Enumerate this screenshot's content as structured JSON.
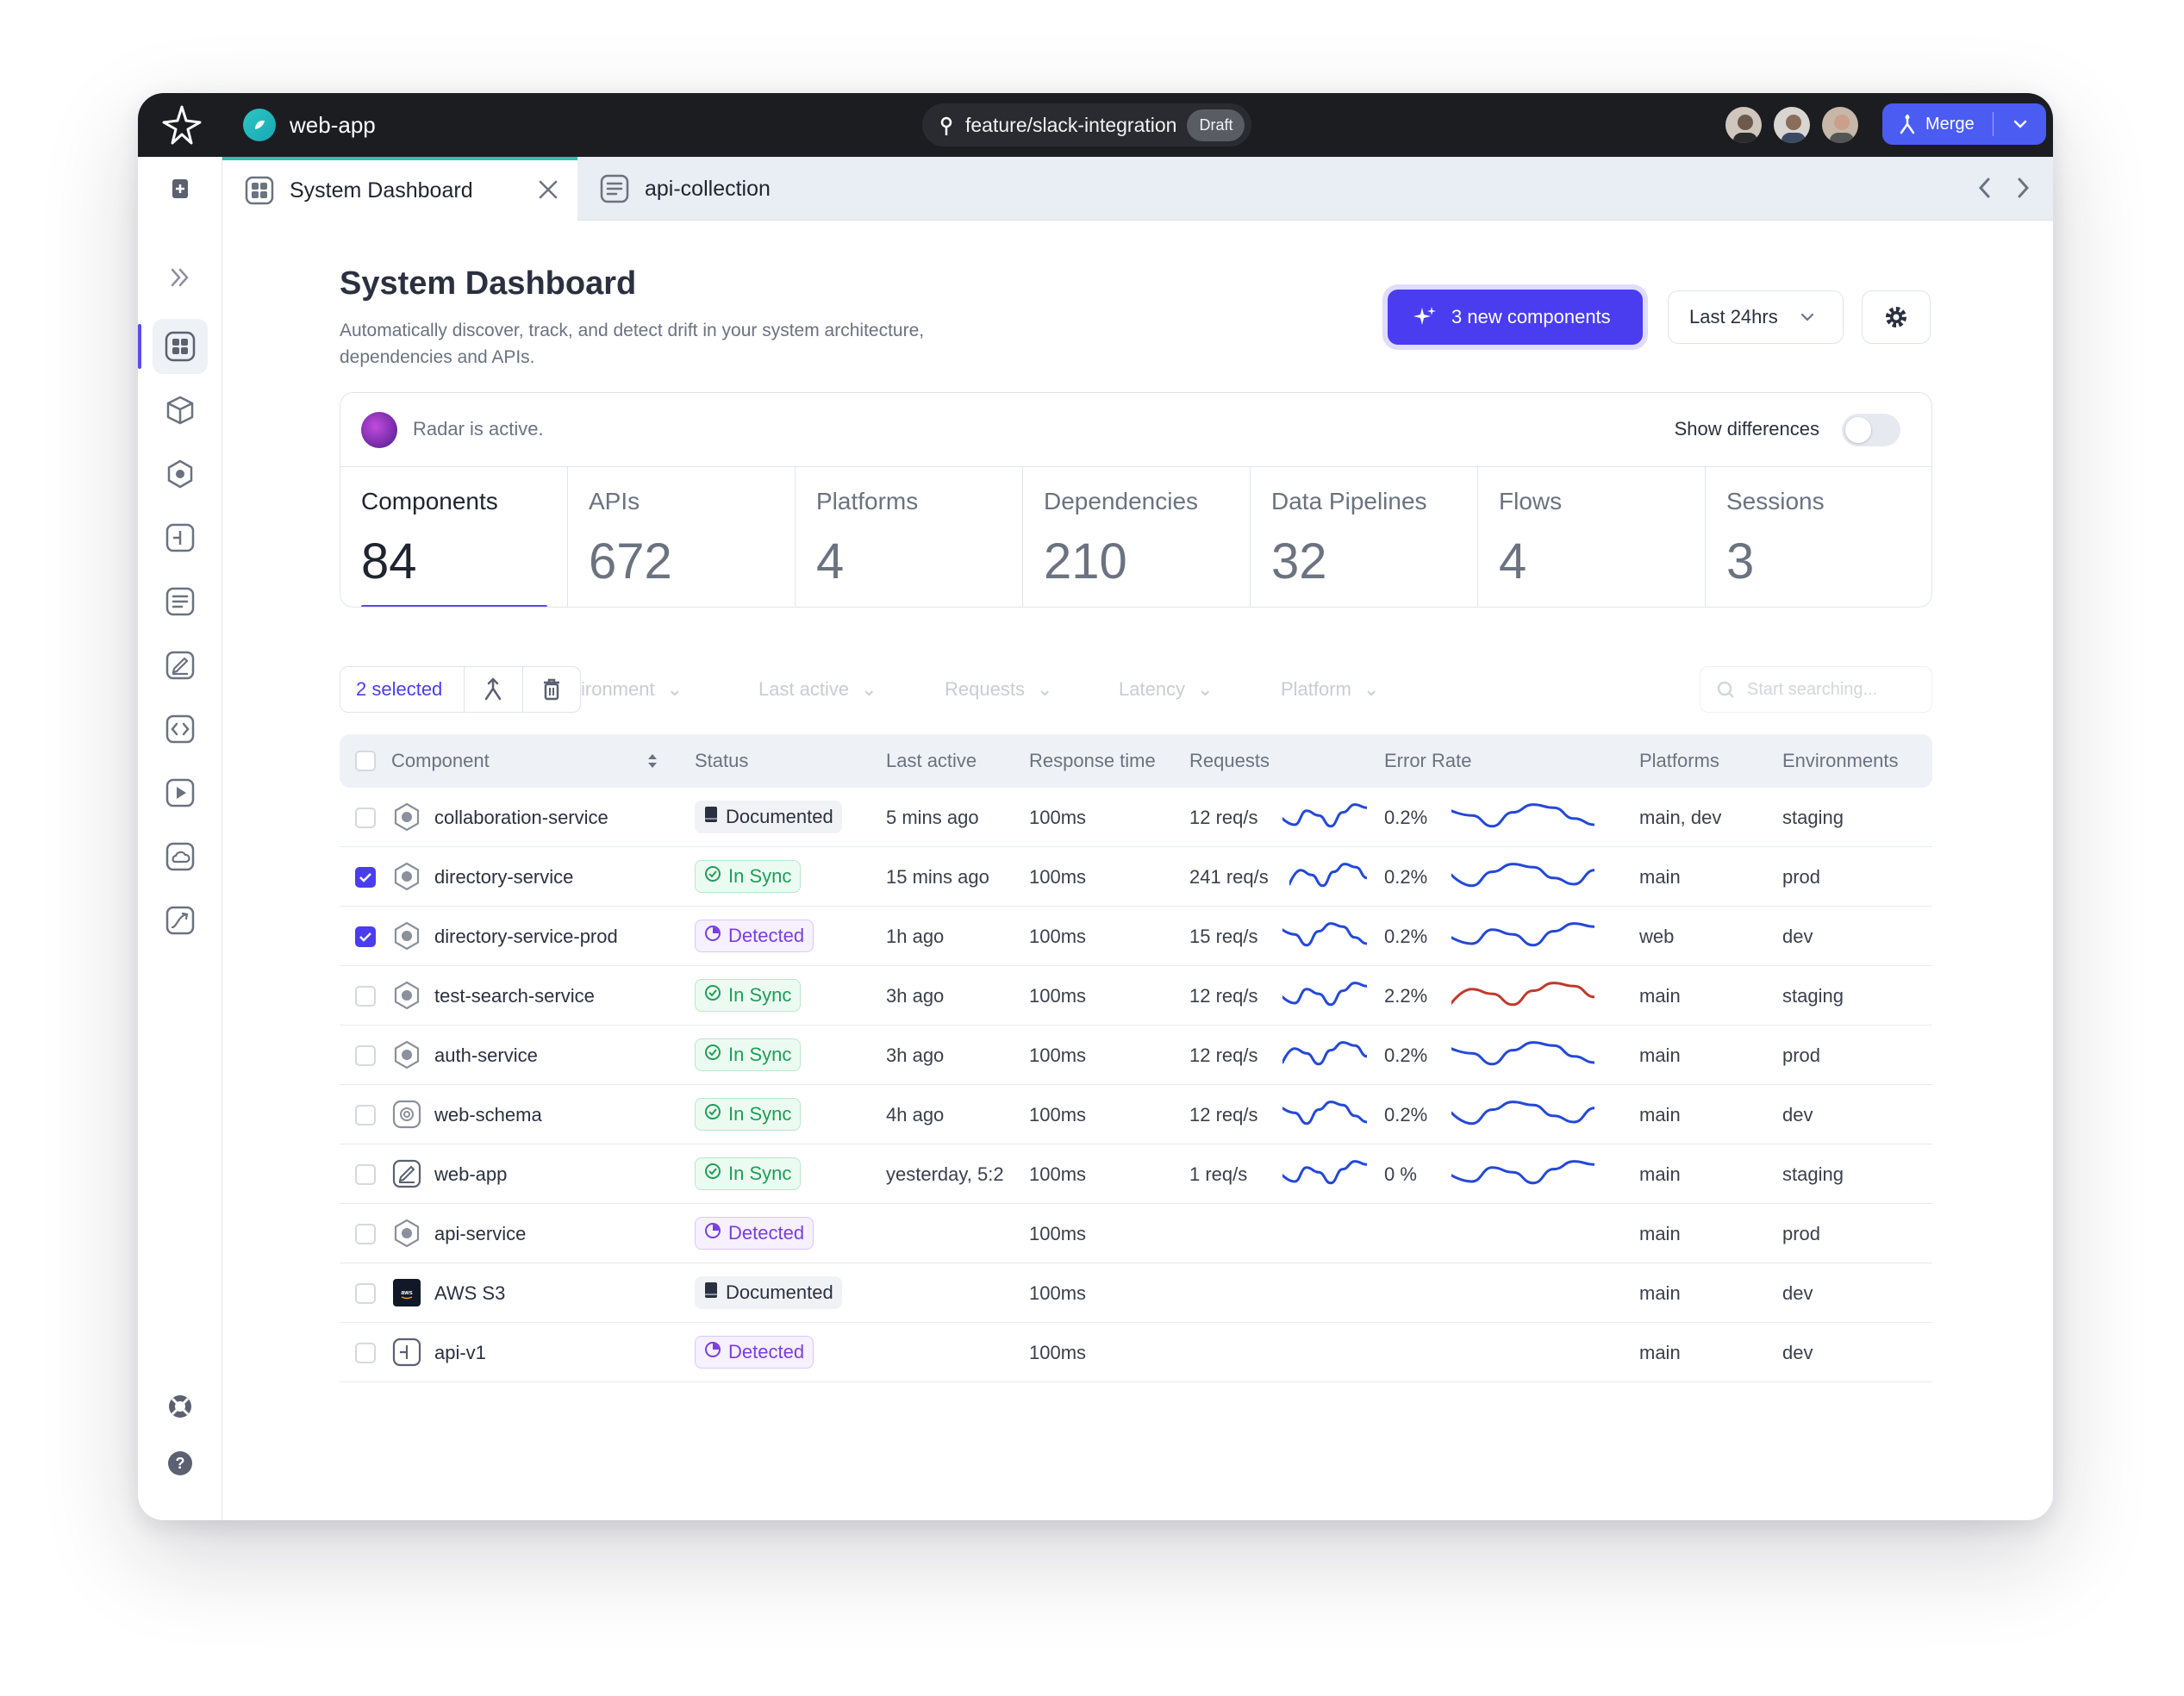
{
  "app": {
    "name": "web-app",
    "branch": "feature/slack-integration",
    "branch_status": "Draft",
    "merge_label": "Merge"
  },
  "tabs": [
    {
      "label": "System Dashboard"
    },
    {
      "label": "api-collection"
    }
  ],
  "page": {
    "title": "System Dashboard",
    "description": "Automatically discover, track, and detect drift in your system architecture, dependencies and APIs.",
    "new_components_label": "3 new components",
    "time_range": "Last 24hrs"
  },
  "radar": {
    "status": "Radar is active.",
    "show_diff_label": "Show differences",
    "show_diff_on": false
  },
  "stats": [
    {
      "label": "Components",
      "value": "84"
    },
    {
      "label": "APIs",
      "value": "672"
    },
    {
      "label": "Platforms",
      "value": "4"
    },
    {
      "label": "Dependencies",
      "value": "210"
    },
    {
      "label": "Data Pipelines",
      "value": "32"
    },
    {
      "label": "Flows",
      "value": "4"
    },
    {
      "label": "Sessions",
      "value": "3"
    }
  ],
  "filters": {
    "selected_label": "2 selected",
    "ghost": [
      "ironment",
      "Last active",
      "Requests",
      "Latency",
      "Platform"
    ],
    "search_placeholder": "Start searching..."
  },
  "table": {
    "headers": [
      "Component",
      "Status",
      "Last active",
      "Response time",
      "Requests",
      "Error Rate",
      "Platforms",
      "Environments"
    ],
    "rows": [
      {
        "checked": false,
        "icon": "service-hex-icon",
        "name": "collaboration-service",
        "status": "Documented",
        "last_active": "5 mins ago",
        "response": "100ms",
        "requests": "12 req/s",
        "error": "0.2%",
        "error_alert": false,
        "platforms": "main, dev",
        "env": "staging"
      },
      {
        "checked": true,
        "icon": "service-hex-icon",
        "name": "directory-service",
        "status": "In Sync",
        "last_active": "15 mins ago",
        "response": "100ms",
        "requests": "241 req/s",
        "error": "0.2%",
        "error_alert": false,
        "platforms": "main",
        "env": "prod"
      },
      {
        "checked": true,
        "icon": "service-hex-icon",
        "name": "directory-service-prod",
        "status": "Detected",
        "last_active": "1h ago",
        "response": "100ms",
        "requests": "15 req/s",
        "error": "0.2%",
        "error_alert": false,
        "platforms": "web",
        "env": "dev"
      },
      {
        "checked": false,
        "icon": "service-hex-icon",
        "name": "test-search-service",
        "status": "In Sync",
        "last_active": "3h ago",
        "response": "100ms",
        "requests": "12 req/s",
        "error": "2.2%",
        "error_alert": true,
        "platforms": "main",
        "env": "staging"
      },
      {
        "checked": false,
        "icon": "service-hex-icon",
        "name": "auth-service",
        "status": "In Sync",
        "last_active": "3h ago",
        "response": "100ms",
        "requests": "12 req/s",
        "error": "0.2%",
        "error_alert": false,
        "platforms": "main",
        "env": "prod"
      },
      {
        "checked": false,
        "icon": "schema-icon",
        "name": "web-schema",
        "status": "In Sync",
        "last_active": "4h ago",
        "response": "100ms",
        "requests": "12 req/s",
        "error": "0.2%",
        "error_alert": false,
        "platforms": "main",
        "env": "dev"
      },
      {
        "checked": false,
        "icon": "web-app-icon",
        "name": "web-app",
        "status": "In Sync",
        "last_active": "yesterday, 5:2",
        "response": "100ms",
        "requests": "1 req/s",
        "error": "0 %",
        "error_alert": false,
        "platforms": "main",
        "env": "staging"
      },
      {
        "checked": false,
        "icon": "service-hex-icon",
        "name": "api-service",
        "status": "Detected",
        "last_active": "",
        "response": "100ms",
        "requests": "",
        "error": "",
        "error_alert": false,
        "platforms": "main",
        "env": "prod"
      },
      {
        "checked": false,
        "icon": "aws-icon",
        "name": "AWS S3",
        "status": "Documented",
        "last_active": "",
        "response": "100ms",
        "requests": "",
        "error": "",
        "error_alert": false,
        "platforms": "main",
        "env": "dev"
      },
      {
        "checked": false,
        "icon": "api-icon",
        "name": "api-v1",
        "status": "Detected",
        "last_active": "",
        "response": "100ms",
        "requests": "",
        "error": "",
        "error_alert": false,
        "platforms": "main",
        "env": "dev"
      }
    ]
  },
  "colors": {
    "accent": "#4a3df0",
    "sync": "#1f9d57",
    "detected": "#7a3ee0",
    "alert": "#c0392b",
    "spark": "#2448d8"
  }
}
